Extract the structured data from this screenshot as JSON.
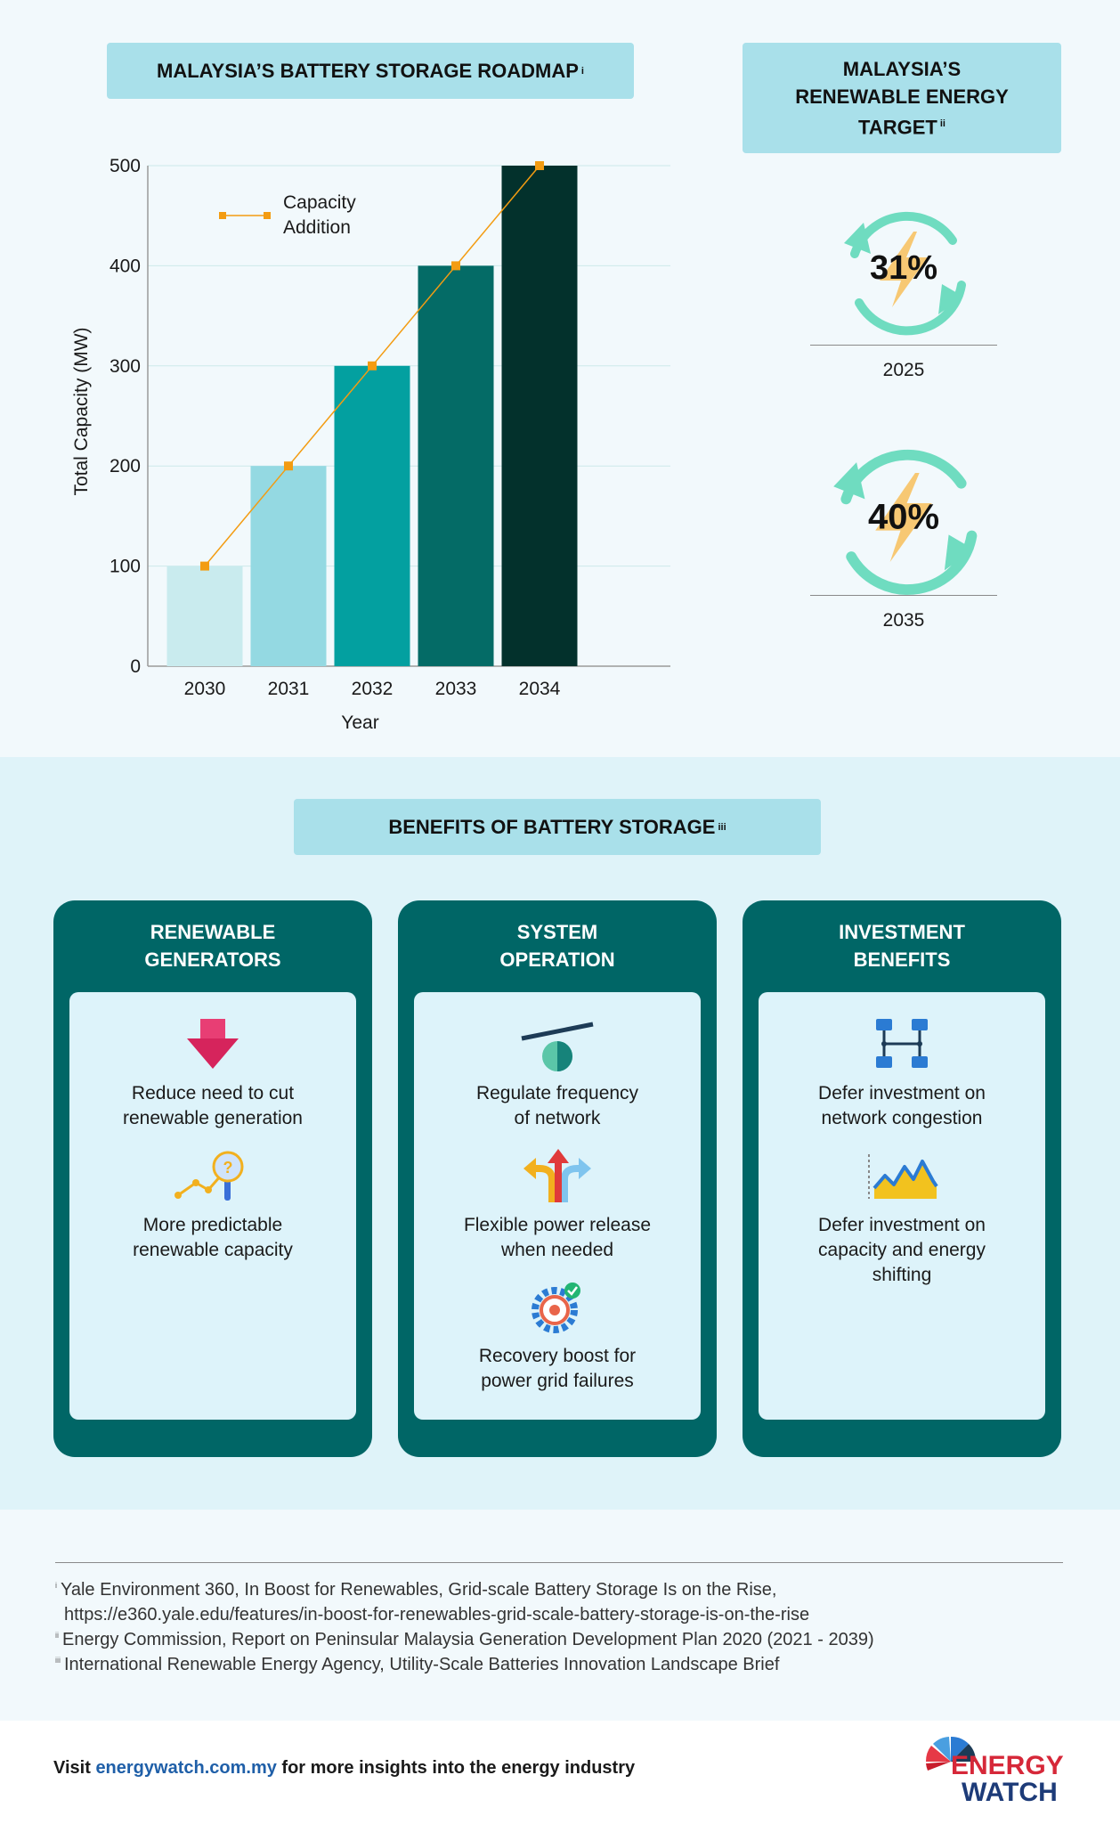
{
  "chart_section": {
    "title": "MALAYSIA’S BATTERY STORAGE ROADMAP",
    "title_note": "i"
  },
  "chart_data": {
    "type": "bar",
    "categories": [
      "2030",
      "2031",
      "2032",
      "2033",
      "2034"
    ],
    "series": [
      {
        "name": "",
        "type": "bar",
        "values": [
          100,
          200,
          300,
          400,
          500
        ]
      },
      {
        "name": "Capacity Addition",
        "type": "line",
        "values": [
          100,
          200,
          300,
          400,
          500
        ]
      }
    ],
    "legend": [
      "Capacity",
      "Addition"
    ],
    "legend_position": "top-left",
    "xlabel": "Year",
    "ylabel": "Total Capacity (MW)",
    "ylim": [
      0,
      500
    ],
    "yticks": [
      "0",
      "100",
      "200",
      "300",
      "400",
      "500"
    ],
    "grid": true,
    "bar_colors": [
      "#c9ebee",
      "#94d9e2",
      "#03a0a0",
      "#046b66",
      "#03312c"
    ],
    "line_color": "#f39c12"
  },
  "target_section": {
    "title_line1": "MALAYSIA’S",
    "title_line2": "RENEWABLE ENERGY",
    "title_line3": "TARGET",
    "title_note": "ii",
    "targets": [
      {
        "percent": "31%",
        "year": "2025"
      },
      {
        "percent": "40%",
        "year": "2035"
      }
    ],
    "arrow_color": "#6fdcc0",
    "bolt_color": "#f7c873"
  },
  "benefits_section": {
    "title": "BENEFITS OF BATTERY STORAGE",
    "title_note": "iii",
    "cards": [
      {
        "title_line1": "RENEWABLE",
        "title_line2": "GENERATORS",
        "items": [
          {
            "line1": "Reduce need to cut",
            "line2": "renewable generation",
            "line3": "",
            "icon": "down-arrow-icon"
          },
          {
            "line1": "More predictable",
            "line2": "renewable capacity",
            "line3": "",
            "icon": "forecast-magnifier-icon"
          }
        ]
      },
      {
        "title_line1": "SYSTEM",
        "title_line2": "OPERATION",
        "items": [
          {
            "line1": "Regulate frequency",
            "line2": "of network",
            "line3": "",
            "icon": "balance-icon"
          },
          {
            "line1": "Flexible power release",
            "line2": "when needed",
            "line3": "",
            "icon": "split-arrows-icon"
          },
          {
            "line1": "Recovery boost for",
            "line2": "power grid failures",
            "line3": "",
            "icon": "gear-check-icon"
          }
        ]
      },
      {
        "title_line1": "INVESTMENT",
        "title_line2": "BENEFITS",
        "items": [
          {
            "line1": "Defer investment on",
            "line2": "network congestion",
            "line3": "",
            "icon": "network-icon"
          },
          {
            "line1": "Defer investment on",
            "line2": "capacity and energy",
            "line3": "shifting",
            "icon": "area-chart-icon"
          }
        ]
      }
    ]
  },
  "references": [
    {
      "mark": "i",
      "text": "Yale Environment 360, In Boost for Renewables, Grid-scale Battery Storage Is on the Rise,"
    },
    {
      "mark": "",
      "text": "https://e360.yale.edu/features/in-boost-for-renewables-grid-scale-battery-storage-is-on-the-rise"
    },
    {
      "mark": "ii",
      "text": "Energy Commission, Report on Peninsular Malaysia Generation Development Plan 2020 (2021 - 2039)"
    },
    {
      "mark": "iii",
      "text": "International Renewable Energy Agency, Utility-Scale Batteries Innovation Landscape Brief"
    }
  ],
  "footer": {
    "prefix": "Visit ",
    "link": "energywatch.com.my",
    "suffix": " for more insights into the energy industry",
    "logo_line1": "ENERGY",
    "logo_line2": "WATCH"
  }
}
